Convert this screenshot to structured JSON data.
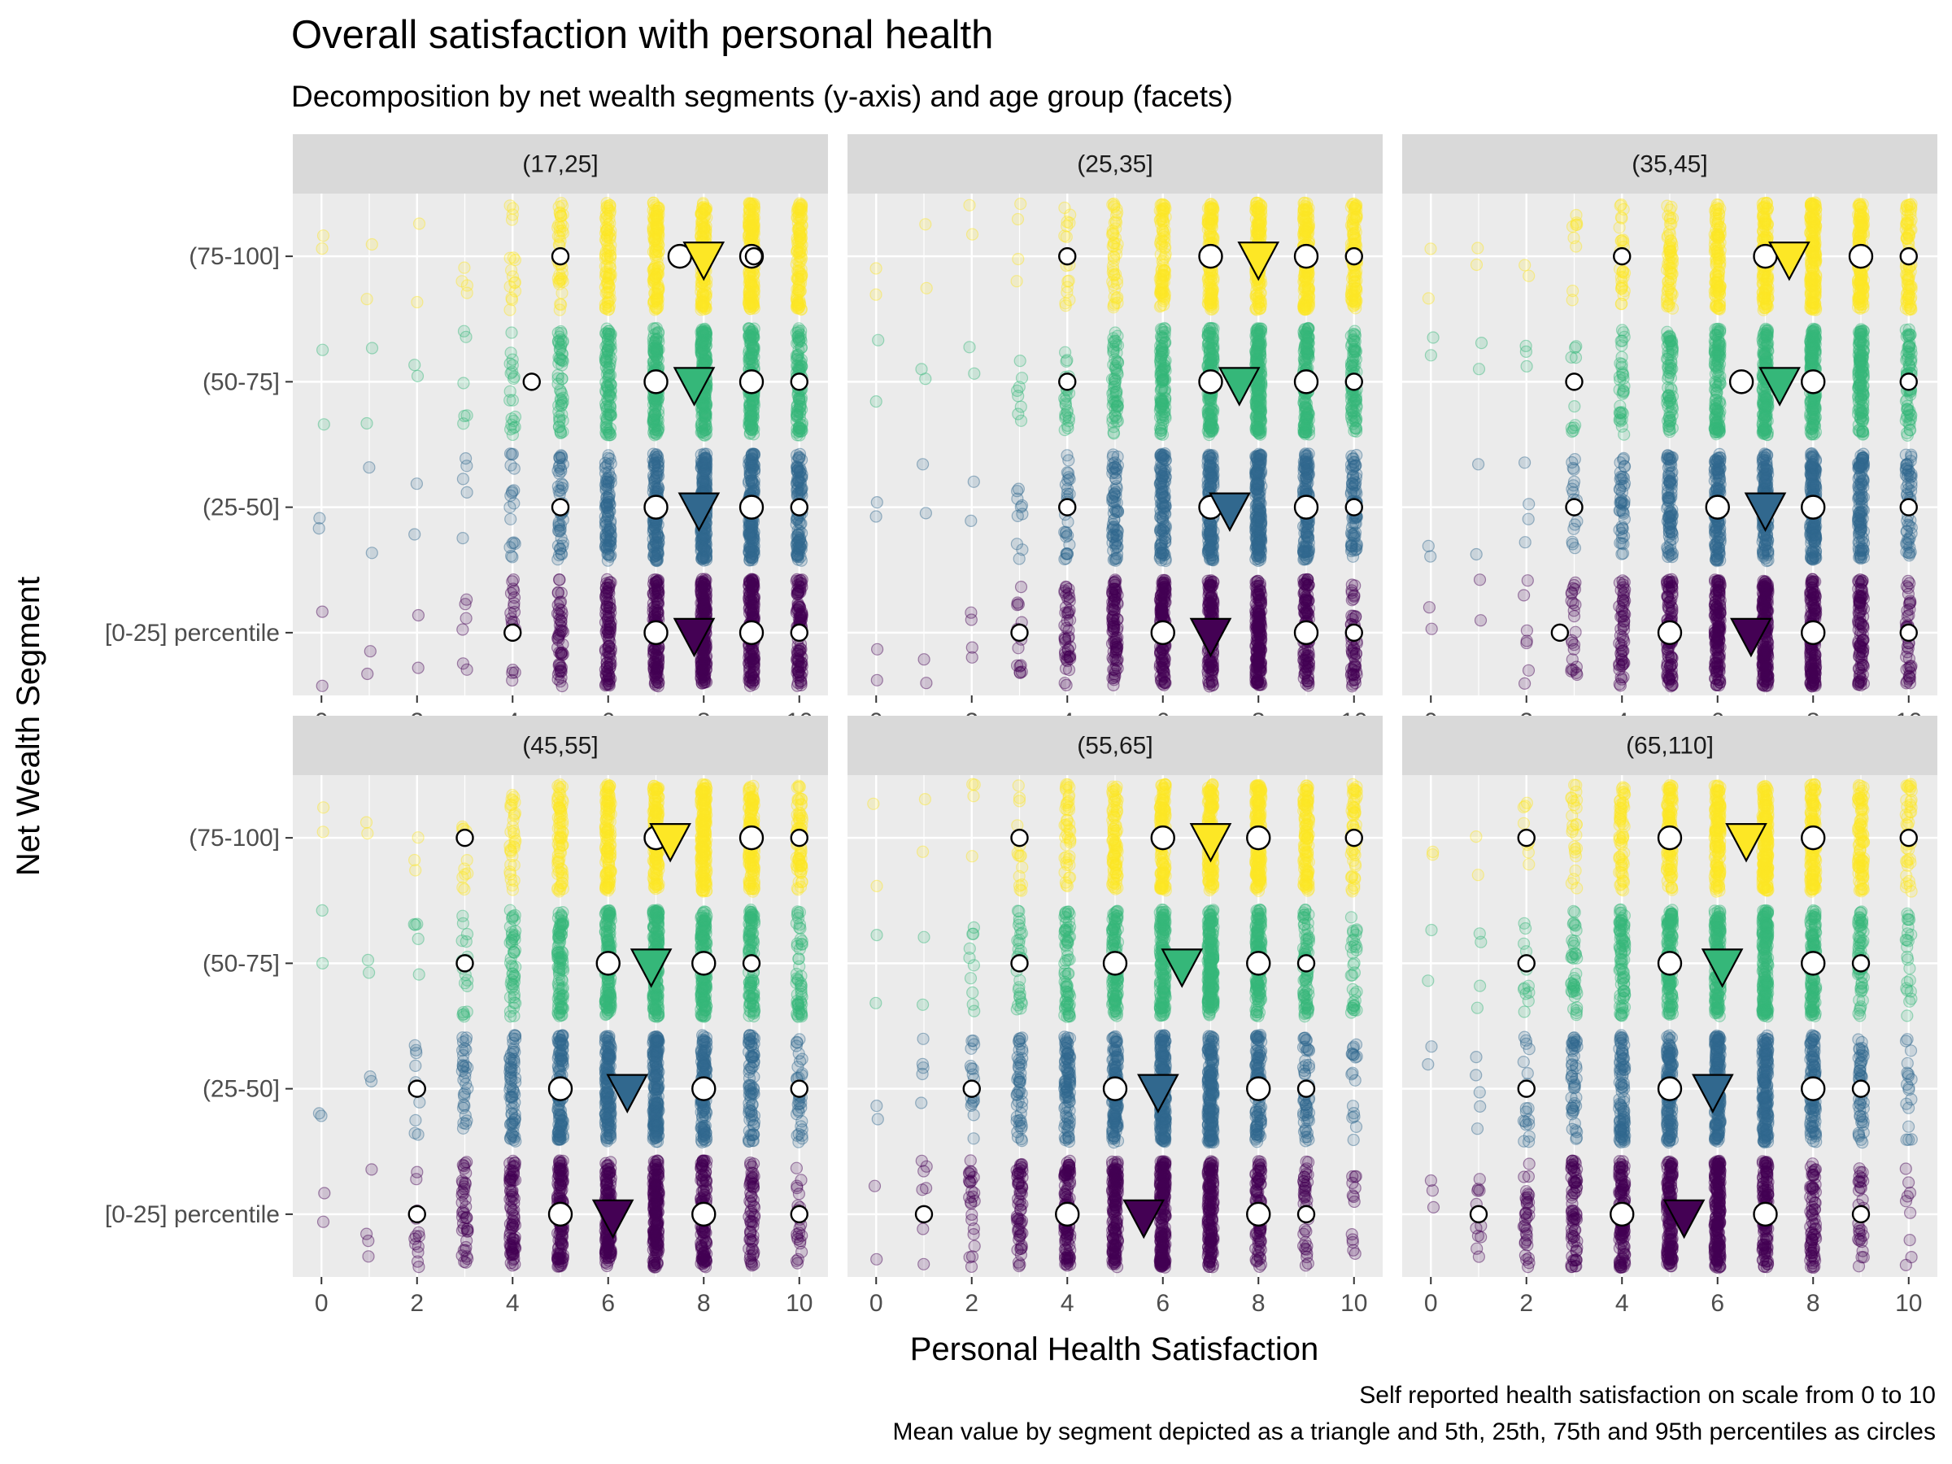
{
  "chart_data": {
    "type": "scatter",
    "title": "Overall satisfaction with personal health",
    "subtitle": "Decomposition by net wealth segments (y-axis) and age group (facets)",
    "xlabel": "Personal Health Satisfaction",
    "ylabel": "Net Wealth Segment",
    "caption": [
      "Self reported health satisfaction on scale from 0 to 10",
      "Mean value by segment depicted as a triangle and 5th, 25th, 75th and 95th percentiles as circles"
    ],
    "xlim": [
      -0.6,
      10.6
    ],
    "x_ticks": [
      0,
      2,
      4,
      6,
      8,
      10
    ],
    "categories": [
      "[0-25] percentile",
      "(25-50]",
      "(50-75]",
      "(75-100]"
    ],
    "grid": true,
    "series_colors": {
      "[0-25] percentile": "#440154",
      "(25-50]": "#31688e",
      "(50-75]": "#35b779",
      "(75-100]": "#fde725"
    },
    "facets": [
      {
        "label": "(17,25]",
        "segments": [
          {
            "segment": "[0-25] percentile",
            "mean": 7.8,
            "percentiles": [
              4,
              7,
              9,
              10
            ]
          },
          {
            "segment": "(25-50]",
            "mean": 7.9,
            "percentiles": [
              5,
              7,
              9,
              10
            ]
          },
          {
            "segment": "(50-75]",
            "mean": 7.8,
            "percentiles": [
              4.4,
              7,
              9,
              10
            ]
          },
          {
            "segment": "(75-100]",
            "mean": 8.0,
            "percentiles": [
              5,
              7.5,
              9,
              9.05
            ]
          }
        ]
      },
      {
        "label": "(25,35]",
        "segments": [
          {
            "segment": "[0-25] percentile",
            "mean": 7.0,
            "percentiles": [
              3,
              6,
              9,
              10
            ]
          },
          {
            "segment": "(25-50]",
            "mean": 7.4,
            "percentiles": [
              4,
              7,
              9,
              10
            ]
          },
          {
            "segment": "(50-75]",
            "mean": 7.6,
            "percentiles": [
              4,
              7,
              9,
              10
            ]
          },
          {
            "segment": "(75-100]",
            "mean": 8.0,
            "percentiles": [
              4,
              7,
              9,
              10
            ]
          }
        ]
      },
      {
        "label": "(35,45]",
        "segments": [
          {
            "segment": "[0-25] percentile",
            "mean": 6.7,
            "percentiles": [
              2.7,
              5,
              8,
              10
            ]
          },
          {
            "segment": "(25-50]",
            "mean": 7.0,
            "percentiles": [
              3,
              6,
              8,
              10
            ]
          },
          {
            "segment": "(50-75]",
            "mean": 7.3,
            "percentiles": [
              3,
              6.5,
              8,
              10
            ]
          },
          {
            "segment": "(75-100]",
            "mean": 7.5,
            "percentiles": [
              4,
              7,
              9,
              10
            ]
          }
        ]
      },
      {
        "label": "(45,55]",
        "segments": [
          {
            "segment": "[0-25] percentile",
            "mean": 6.1,
            "percentiles": [
              2,
              5,
              8,
              10
            ]
          },
          {
            "segment": "(25-50]",
            "mean": 6.4,
            "percentiles": [
              2,
              5,
              8,
              10
            ]
          },
          {
            "segment": "(50-75]",
            "mean": 6.9,
            "percentiles": [
              3,
              6,
              8,
              9
            ]
          },
          {
            "segment": "(75-100]",
            "mean": 7.3,
            "percentiles": [
              3,
              7,
              9,
              10
            ]
          }
        ]
      },
      {
        "label": "(55,65]",
        "segments": [
          {
            "segment": "[0-25] percentile",
            "mean": 5.6,
            "percentiles": [
              1,
              4,
              8,
              9
            ]
          },
          {
            "segment": "(25-50]",
            "mean": 5.9,
            "percentiles": [
              2,
              5,
              8,
              9
            ]
          },
          {
            "segment": "(50-75]",
            "mean": 6.4,
            "percentiles": [
              3,
              5,
              8,
              9
            ]
          },
          {
            "segment": "(75-100]",
            "mean": 7.0,
            "percentiles": [
              3,
              6,
              8,
              10
            ]
          }
        ]
      },
      {
        "label": "(65,110]",
        "segments": [
          {
            "segment": "[0-25] percentile",
            "mean": 5.3,
            "percentiles": [
              1,
              4,
              7,
              9
            ]
          },
          {
            "segment": "(25-50]",
            "mean": 5.9,
            "percentiles": [
              2,
              5,
              8,
              9
            ]
          },
          {
            "segment": "(50-75]",
            "mean": 6.1,
            "percentiles": [
              2,
              5,
              8,
              9
            ]
          },
          {
            "segment": "(75-100]",
            "mean": 6.6,
            "percentiles": [
              2,
              5,
              8,
              10
            ]
          }
        ]
      }
    ]
  }
}
